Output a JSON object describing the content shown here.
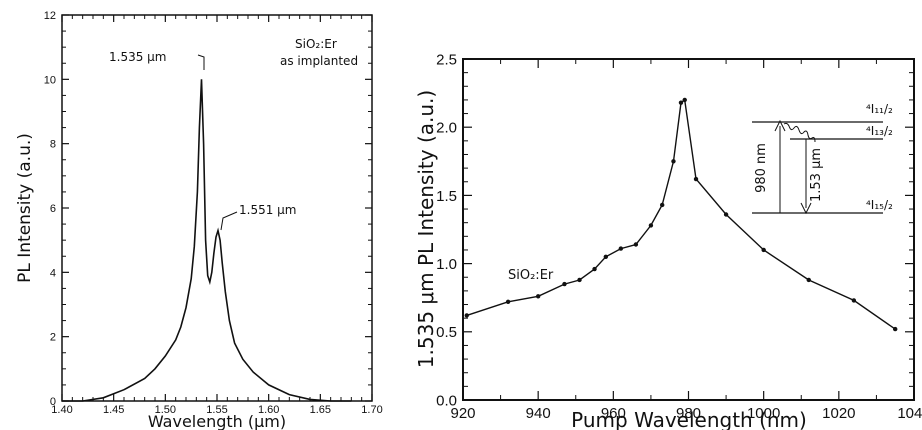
{
  "chart_data": [
    {
      "type": "line",
      "xlabel": "Wavelength (μm)",
      "ylabel": "PL Intensity (a.u.)",
      "xlim": [
        1.4,
        1.7
      ],
      "ylim": [
        0,
        12
      ],
      "xticks": [
        "1.40",
        "1.45",
        "1.50",
        "1.55",
        "1.60",
        "1.65",
        "1.70"
      ],
      "yticks": [
        "0",
        "2",
        "4",
        "6",
        "8",
        "10",
        "12"
      ],
      "grid": false,
      "legend": "none",
      "annotations": [
        {
          "id": "peak1",
          "text": "1.535 μm",
          "x": 1.535,
          "y": 10.0
        },
        {
          "id": "peak2",
          "text": "1.551 μm",
          "x": 1.551,
          "y": 5.3
        },
        {
          "id": "sample1",
          "text": "SiO₂:Er",
          "x": 1.62,
          "y": 11.3
        },
        {
          "id": "sample2",
          "text": "as implanted",
          "x": 1.62,
          "y": 10.7
        }
      ],
      "series": [
        {
          "color": "#111111",
          "x": [
            1.4,
            1.42,
            1.44,
            1.46,
            1.48,
            1.49,
            1.5,
            1.51,
            1.515,
            1.52,
            1.525,
            1.528,
            1.531,
            1.533,
            1.535,
            1.537,
            1.539,
            1.541,
            1.543,
            1.545,
            1.547,
            1.549,
            1.551,
            1.553,
            1.555,
            1.558,
            1.562,
            1.567,
            1.575,
            1.585,
            1.6,
            1.62,
            1.64,
            1.66,
            1.68
          ],
          "y": [
            0,
            0,
            0.1,
            0.35,
            0.7,
            1.0,
            1.4,
            1.9,
            2.3,
            2.9,
            3.8,
            4.8,
            6.5,
            8.5,
            10.0,
            8.0,
            5.0,
            3.9,
            3.7,
            4.0,
            4.6,
            5.1,
            5.3,
            5.0,
            4.3,
            3.4,
            2.5,
            1.8,
            1.3,
            0.9,
            0.5,
            0.2,
            0.05,
            0,
            0
          ]
        }
      ]
    },
    {
      "type": "line",
      "xlabel": "Pump Wavelength (nm)",
      "ylabel": "1.535 μm PL Intensity (a.u.)",
      "xlim": [
        920,
        1040
      ],
      "ylim": [
        0,
        2.5
      ],
      "xticks": [
        "920",
        "940",
        "960",
        "980",
        "1000",
        "1020",
        "1040"
      ],
      "yticks": [
        "0.0",
        "0.5",
        "1.0",
        "1.5",
        "2.0",
        "2.5"
      ],
      "grid": false,
      "legend": "none",
      "annotations": [
        {
          "id": "sample",
          "text": "SiO₂:Er"
        }
      ],
      "inset": {
        "levels": [
          "⁴I₁₁/₂",
          "⁴I₁₃/₂",
          "⁴I₁₅/₂"
        ],
        "pump_label": "980 nm",
        "emission_label": "1.53 μm"
      },
      "series": [
        {
          "color": "#111111",
          "markers": true,
          "x": [
            921,
            932,
            940,
            947,
            951,
            955,
            958,
            962,
            966,
            970,
            973,
            976,
            978,
            979,
            982,
            990,
            1000,
            1012,
            1024,
            1035
          ],
          "y": [
            0.62,
            0.72,
            0.76,
            0.85,
            0.88,
            0.96,
            1.05,
            1.11,
            1.14,
            1.28,
            1.43,
            1.75,
            2.18,
            2.2,
            1.62,
            1.36,
            1.1,
            0.88,
            0.73,
            0.52
          ]
        }
      ]
    }
  ]
}
